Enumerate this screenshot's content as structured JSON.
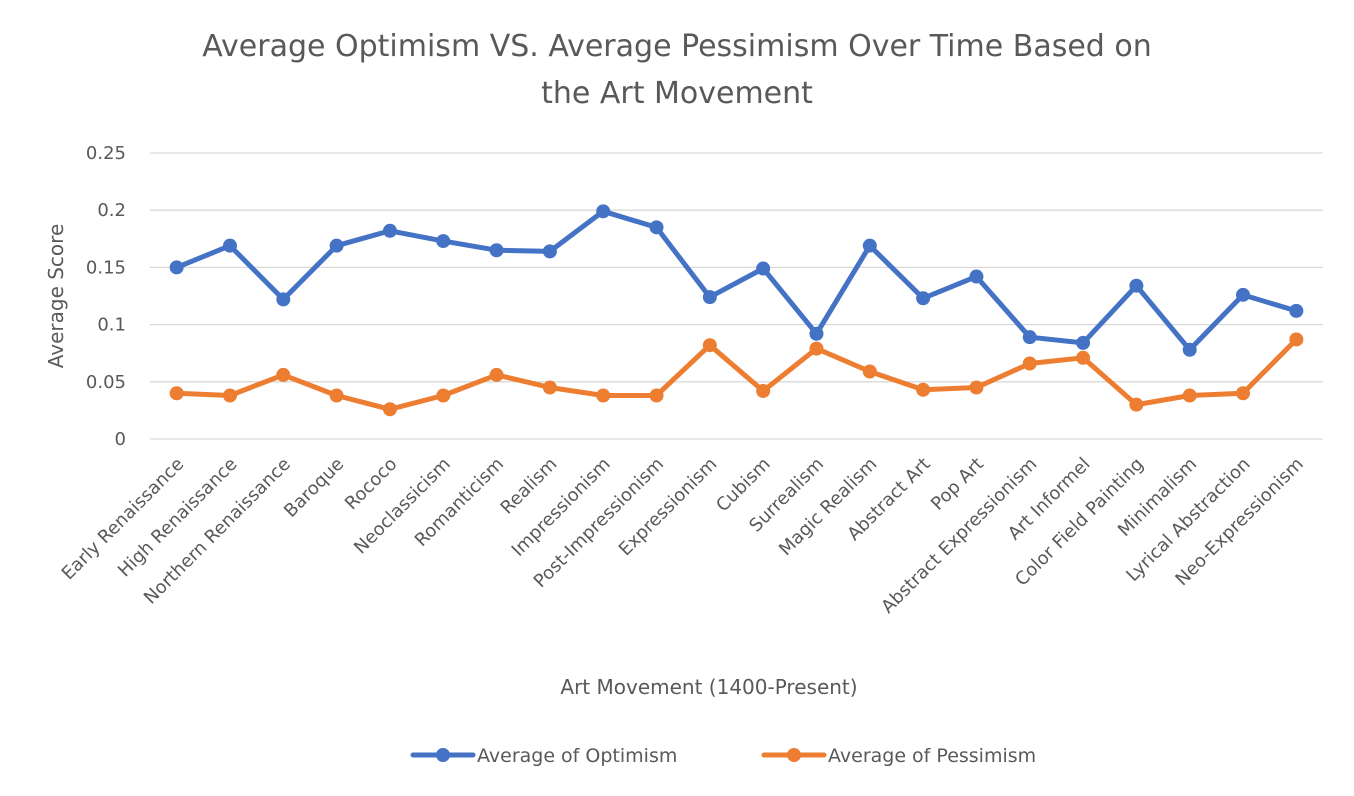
{
  "chart_data": {
    "type": "line",
    "title": "Average Optimism VS. Average Pessimism Over Time Based on the Art Movement",
    "title_lines": [
      "Average Optimism VS. Average Pessimism Over Time Based on",
      "the Art Movement"
    ],
    "xlabel": "Art Movement (1400-Present)",
    "ylabel": "Average Score",
    "ylim": [
      0,
      0.25
    ],
    "yticks": [
      "0",
      "0.05",
      "0.1",
      "0.15",
      "0.2",
      "0.25"
    ],
    "grid": true,
    "legend_position": "bottom",
    "categories": [
      "Early Renaissance",
      "High Renaissance",
      "Northern Renaissance",
      "Baroque",
      "Rococo",
      "Neoclassicism",
      "Romanticism",
      "Realism",
      "Impressionism",
      "Post-Impressionism",
      "Expressionism",
      "Cubism",
      "Surrealism",
      "Magic Realism",
      "Abstract Art",
      "Pop Art",
      "Abstract Expressionism",
      "Art Informel",
      "Color Field Painting",
      "Minimalism",
      "Lyrical Abstraction",
      "Neo-Expressionism"
    ],
    "series": [
      {
        "name": "Average of Optimism",
        "color": "#4472C4",
        "values": [
          0.15,
          0.169,
          0.122,
          0.169,
          0.182,
          0.173,
          0.165,
          0.164,
          0.199,
          0.185,
          0.124,
          0.149,
          0.092,
          0.169,
          0.123,
          0.142,
          0.089,
          0.084,
          0.134,
          0.078,
          0.126,
          0.112
        ]
      },
      {
        "name": "Average of Pessimism",
        "color": "#ED7D31",
        "values": [
          0.04,
          0.038,
          0.056,
          0.038,
          0.026,
          0.038,
          0.056,
          0.045,
          0.038,
          0.038,
          0.082,
          0.042,
          0.079,
          0.059,
          0.043,
          0.045,
          0.066,
          0.071,
          0.03,
          0.038,
          0.04,
          0.087
        ]
      }
    ]
  }
}
